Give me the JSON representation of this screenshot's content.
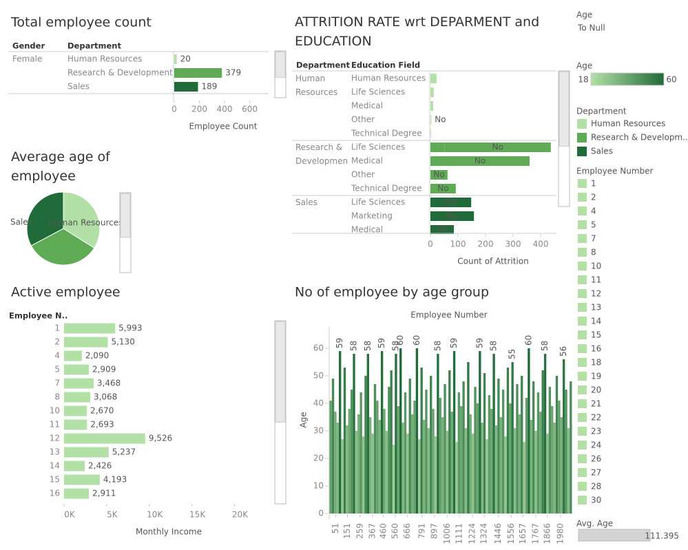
{
  "chart_data": [
    {
      "type": "hbar-table",
      "title": "Total employee count",
      "row_headers": [
        "Gender",
        "Department"
      ],
      "rows": [
        [
          "Female",
          "Human Resources"
        ],
        [
          null,
          "Research & Development"
        ],
        [
          null,
          "Sales"
        ]
      ],
      "values": [
        20,
        379,
        189
      ],
      "colors": [
        "#b3e0a6",
        "#5fab55",
        "#216b3a"
      ],
      "x_label": "Employee Count",
      "xlim": [
        0,
        750
      ],
      "xticks": [
        0,
        200,
        400,
        600
      ]
    },
    {
      "type": "pie",
      "title": "Average age of employee",
      "categories": [
        "Human Resources",
        null,
        "Sales"
      ],
      "values": [
        37.8,
        37.0,
        36.5
      ],
      "colors": [
        "#b3e0a6",
        "#5fab55",
        "#216b3a"
      ]
    },
    {
      "type": "attrition",
      "title": "ATTRITION RATE wrt DEPARMENT and EDUCATION",
      "row_headers": [
        "Department",
        "Education Field"
      ],
      "groups": [
        {
          "department": "Human Resources",
          "color": "#b3e0a6",
          "rows": [
            {
              "field": "Human Resources",
              "segments": [
                {
                  "value": 22
                }
              ]
            },
            {
              "field": "Life Sciences",
              "segments": [
                {
                  "value": 12
                }
              ]
            },
            {
              "field": "Medical",
              "segments": [
                {
                  "value": 10
                }
              ]
            },
            {
              "field": "Other",
              "segments": [
                {
                  "value": 3,
                  "label": "No"
                }
              ]
            },
            {
              "field": "Technical Degree",
              "segments": [
                {
                  "value": 2
                }
              ]
            }
          ]
        },
        {
          "department": "Research & Development",
          "color": "#5fab55",
          "rows": [
            {
              "field": "Life Sciences",
              "segments": [
                {
                  "value": 52,
                  "label": "Yes"
                },
                {
                  "value": 385,
                  "label": "No"
                }
              ]
            },
            {
              "field": "Medical",
              "segments": [
                {
                  "value": 360,
                  "label": "No"
                }
              ]
            },
            {
              "field": "Other",
              "segments": [
                {
                  "value": 62,
                  "label": "No"
                }
              ]
            },
            {
              "field": "Technical Degree",
              "segments": [
                {
                  "value": 92,
                  "label": "No"
                }
              ]
            }
          ]
        },
        {
          "department": "Sales",
          "color": "#216b3a",
          "rows": [
            {
              "field": "Life Sciences",
              "segments": [
                {
                  "value": 148,
                  "label": "No"
                }
              ]
            },
            {
              "field": "Marketing",
              "segments": [
                {
                  "value": 158,
                  "label": "No"
                }
              ]
            },
            {
              "field": "Medical",
              "segments": [
                {
                  "value": 85,
                  "label": "No"
                }
              ]
            }
          ]
        }
      ],
      "x_label": "Count of Attrition",
      "xlim": [
        0,
        500
      ],
      "xticks": [
        0,
        100,
        200,
        300,
        400
      ]
    },
    {
      "type": "hbar",
      "title": "Active employee",
      "row_header": "Employee N..",
      "categories": [
        "1",
        "2",
        "4",
        "5",
        "7",
        "8",
        "10",
        "11",
        "12",
        "13",
        "14",
        "15",
        "16"
      ],
      "values": [
        5993,
        5130,
        2090,
        2909,
        3468,
        3068,
        2670,
        2693,
        9526,
        5237,
        2426,
        4193,
        2911
      ],
      "value_labels": [
        "5,993",
        "5,130",
        "2,090",
        "2,909",
        "3,468",
        "3,068",
        "2,670",
        "2,693",
        "9,526",
        "5,237",
        "2,426",
        "4,193",
        "2,911"
      ],
      "color": "#b3e0a6",
      "x_label": "Monthly Income",
      "xlim": [
        0,
        24000
      ],
      "xticks": [
        {
          "value": 0,
          "label": "0K"
        },
        {
          "value": 5000,
          "label": "5K"
        },
        {
          "value": 10000,
          "label": "10K"
        },
        {
          "value": 15000,
          "label": "15K"
        },
        {
          "value": 20000,
          "label": "20K"
        }
      ]
    },
    {
      "type": "column",
      "title": "No of employee by age group",
      "x_title": "Employee Number",
      "y_label": "Age",
      "x": [
        1,
        21,
        41,
        61,
        81,
        101,
        121,
        141,
        161,
        181,
        201,
        221,
        241,
        261,
        281,
        301,
        321,
        341,
        361,
        381,
        401,
        421,
        441,
        461,
        481,
        501,
        521,
        541,
        561,
        581,
        601,
        621,
        641,
        661,
        681,
        701,
        721,
        741,
        761,
        781,
        801,
        821,
        841,
        861,
        881,
        901,
        921,
        941,
        961,
        981,
        1001,
        1021,
        1041,
        1061,
        1081,
        1101,
        1121,
        1141,
        1161,
        1181,
        1201,
        1221,
        1241,
        1261,
        1281,
        1301,
        1321,
        1341,
        1361,
        1381,
        1401,
        1421,
        1441,
        1461,
        1481,
        1501,
        1521,
        1541,
        1561,
        1581,
        1601,
        1621,
        1641,
        1661,
        1681,
        1701,
        1721,
        1741,
        1761,
        1781,
        1801,
        1821,
        1841,
        1861,
        1881,
        1901,
        1921,
        1941,
        1961,
        1981,
        2001,
        2021,
        2041,
        2061
      ],
      "values": [
        41,
        49,
        37,
        33,
        59,
        27,
        53,
        32,
        38,
        45,
        58,
        30,
        36,
        44,
        28,
        50,
        58,
        35,
        29,
        47,
        41,
        34,
        59,
        38,
        30,
        46,
        52,
        25,
        58,
        39,
        60,
        33,
        44,
        29,
        49,
        36,
        41,
        60,
        27,
        53,
        34,
        45,
        31,
        50,
        38,
        28,
        58,
        42,
        35,
        47,
        30,
        52,
        37,
        59,
        26,
        44,
        39,
        48,
        31,
        55,
        36,
        29,
        46,
        40,
        59,
        33,
        51,
        27,
        43,
        38,
        58,
        32,
        49,
        35,
        45,
        28,
        53,
        40,
        55,
        31,
        47,
        36,
        50,
        26,
        42,
        60,
        34,
        48,
        30,
        44,
        37,
        52,
        58,
        29,
        46,
        39,
        33,
        50,
        41,
        35,
        56,
        45,
        31,
        48
      ],
      "labeled": [
        4,
        10,
        16,
        22,
        28,
        30,
        37,
        46,
        53,
        64,
        70,
        78,
        85,
        92,
        100
      ],
      "xlim": [
        0,
        2068
      ],
      "ylim": [
        0,
        68
      ],
      "yticks": [
        0,
        10,
        20,
        30,
        40,
        50,
        60
      ],
      "xticks": [
        51,
        151,
        259,
        367,
        460,
        560,
        666,
        791,
        897,
        1006,
        1111,
        1224,
        1324,
        1446,
        1556,
        1657,
        1767,
        1866,
        1980
      ]
    }
  ],
  "filters": {
    "age_filter": {
      "title": "Age",
      "value": "To Null"
    },
    "age_legend": {
      "title": "Age",
      "min": 18,
      "max": 60,
      "colors": [
        "#b3e0a6",
        "#216b3a"
      ]
    },
    "department_legend": {
      "title": "Department",
      "items": [
        {
          "name": "Human Resources",
          "color": "#b3e0a6"
        },
        {
          "name": "Research & Developm..",
          "color": "#5fab55"
        },
        {
          "name": "Sales",
          "color": "#216b3a"
        }
      ]
    },
    "employee_filter": {
      "title": "Employee Number",
      "color": "#b3e0a6",
      "items": [
        "1",
        "2",
        "4",
        "5",
        "7",
        "8",
        "10",
        "11",
        "12",
        "13",
        "14",
        "15",
        "16",
        "18",
        "19",
        "20",
        "21",
        "22",
        "23",
        "24",
        "26",
        "27",
        "28",
        "30"
      ]
    },
    "avg_age": {
      "title": "Avg. Age",
      "value": 111.395
    }
  }
}
